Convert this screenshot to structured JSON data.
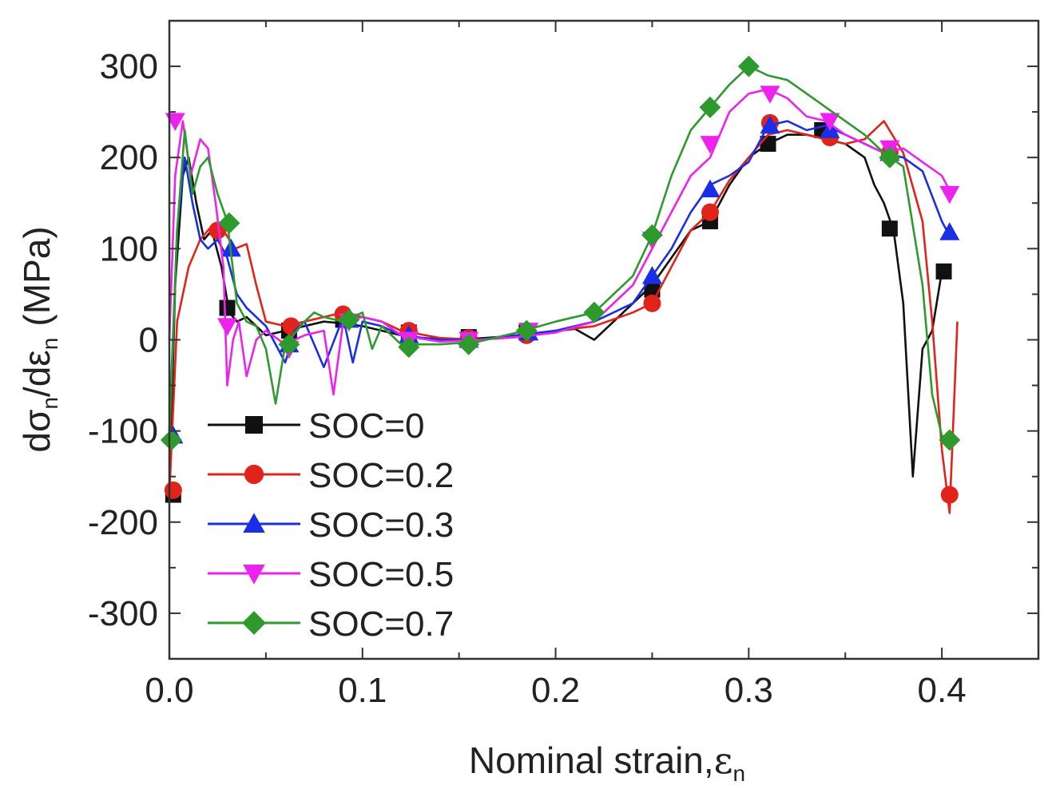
{
  "colors": {
    "axis": "#333333"
  },
  "chart_data": {
    "type": "line",
    "xlabel": "Nominal strain,",
    "xlabel_symbol": "ε",
    "xlabel_sub": "n",
    "ylabel_d1": "dσ",
    "ylabel_sub1": "n",
    "ylabel_slash": "/dε",
    "ylabel_sub2": "n",
    "ylabel_unit": "(MPa)",
    "xlim": [
      0.0,
      0.45
    ],
    "ylim": [
      -350,
      350
    ],
    "xticks": [
      0.0,
      0.1,
      0.2,
      0.3,
      0.4
    ],
    "xtick_labels": [
      "0.0",
      "0.1",
      "0.2",
      "0.3",
      "0.4"
    ],
    "yticks": [
      -300,
      -200,
      -100,
      0,
      100,
      200,
      300
    ],
    "ytick_labels": [
      "-300",
      "-200",
      "-100",
      "0",
      "100",
      "200",
      "300"
    ],
    "grid": false,
    "legend_position": "lower-left",
    "series": [
      {
        "name": "SOC=0",
        "color": "#111111",
        "marker": "square",
        "points": [
          [
            0.0,
            -170
          ],
          [
            0.003,
            60
          ],
          [
            0.007,
            180
          ],
          [
            0.01,
            200
          ],
          [
            0.014,
            150
          ],
          [
            0.018,
            110
          ],
          [
            0.022,
            120
          ],
          [
            0.027,
            80
          ],
          [
            0.031,
            30
          ],
          [
            0.035,
            20
          ],
          [
            0.04,
            25
          ],
          [
            0.05,
            5
          ],
          [
            0.06,
            10
          ],
          [
            0.07,
            15
          ],
          [
            0.08,
            20
          ],
          [
            0.09,
            18
          ],
          [
            0.1,
            15
          ],
          [
            0.11,
            10
          ],
          [
            0.12,
            5
          ],
          [
            0.13,
            2
          ],
          [
            0.15,
            0
          ],
          [
            0.17,
            3
          ],
          [
            0.19,
            7
          ],
          [
            0.21,
            12
          ],
          [
            0.22,
            0
          ],
          [
            0.23,
            20
          ],
          [
            0.24,
            40
          ],
          [
            0.25,
            60
          ],
          [
            0.26,
            90
          ],
          [
            0.27,
            120
          ],
          [
            0.28,
            130
          ],
          [
            0.29,
            170
          ],
          [
            0.3,
            200
          ],
          [
            0.31,
            215
          ],
          [
            0.32,
            225
          ],
          [
            0.33,
            225
          ],
          [
            0.34,
            220
          ],
          [
            0.35,
            215
          ],
          [
            0.36,
            200
          ],
          [
            0.365,
            170
          ],
          [
            0.37,
            150
          ],
          [
            0.375,
            120
          ],
          [
            0.38,
            40
          ],
          [
            0.385,
            -150
          ],
          [
            0.39,
            -10
          ],
          [
            0.395,
            10
          ],
          [
            0.4,
            75
          ],
          [
            0.403,
            70
          ]
        ],
        "markers": [
          [
            0.002,
            -170
          ],
          [
            0.03,
            35
          ],
          [
            0.062,
            10
          ],
          [
            0.09,
            22
          ],
          [
            0.124,
            8
          ],
          [
            0.155,
            3
          ],
          [
            0.185,
            8
          ],
          [
            0.25,
            55
          ],
          [
            0.28,
            130
          ],
          [
            0.31,
            215
          ],
          [
            0.338,
            230
          ],
          [
            0.373,
            122
          ],
          [
            0.401,
            75
          ]
        ]
      },
      {
        "name": "SOC=0.2",
        "color": "#e2231a",
        "marker": "circle",
        "points": [
          [
            0.0,
            -170
          ],
          [
            0.004,
            20
          ],
          [
            0.01,
            80
          ],
          [
            0.016,
            110
          ],
          [
            0.022,
            125
          ],
          [
            0.028,
            120
          ],
          [
            0.034,
            100
          ],
          [
            0.04,
            105
          ],
          [
            0.045,
            60
          ],
          [
            0.05,
            20
          ],
          [
            0.06,
            15
          ],
          [
            0.07,
            20
          ],
          [
            0.08,
            25
          ],
          [
            0.09,
            30
          ],
          [
            0.1,
            25
          ],
          [
            0.11,
            20
          ],
          [
            0.12,
            10
          ],
          [
            0.14,
            2
          ],
          [
            0.16,
            0
          ],
          [
            0.18,
            3
          ],
          [
            0.2,
            10
          ],
          [
            0.22,
            15
          ],
          [
            0.24,
            30
          ],
          [
            0.25,
            40
          ],
          [
            0.26,
            80
          ],
          [
            0.27,
            120
          ],
          [
            0.28,
            140
          ],
          [
            0.29,
            175
          ],
          [
            0.3,
            200
          ],
          [
            0.31,
            225
          ],
          [
            0.32,
            230
          ],
          [
            0.33,
            225
          ],
          [
            0.34,
            220
          ],
          [
            0.35,
            215
          ],
          [
            0.36,
            220
          ],
          [
            0.37,
            240
          ],
          [
            0.38,
            205
          ],
          [
            0.39,
            130
          ],
          [
            0.395,
            20
          ],
          [
            0.4,
            -120
          ],
          [
            0.404,
            -190
          ],
          [
            0.408,
            20
          ]
        ],
        "markers": [
          [
            0.002,
            -165
          ],
          [
            0.025,
            120
          ],
          [
            0.063,
            15
          ],
          [
            0.09,
            28
          ],
          [
            0.124,
            10
          ],
          [
            0.155,
            2
          ],
          [
            0.185,
            5
          ],
          [
            0.25,
            40
          ],
          [
            0.28,
            140
          ],
          [
            0.311,
            238
          ],
          [
            0.342,
            222
          ],
          [
            0.373,
            205
          ],
          [
            0.404,
            -170
          ]
        ]
      },
      {
        "name": "SOC=0.3",
        "color": "#1a2ee8",
        "marker": "triangle-up",
        "points": [
          [
            0.0,
            -100
          ],
          [
            0.004,
            120
          ],
          [
            0.008,
            200
          ],
          [
            0.012,
            150
          ],
          [
            0.016,
            110
          ],
          [
            0.02,
            100
          ],
          [
            0.025,
            110
          ],
          [
            0.03,
            90
          ],
          [
            0.035,
            50
          ],
          [
            0.04,
            35
          ],
          [
            0.05,
            15
          ],
          [
            0.06,
            -25
          ],
          [
            0.065,
            10
          ],
          [
            0.07,
            20
          ],
          [
            0.08,
            -30
          ],
          [
            0.09,
            25
          ],
          [
            0.095,
            -25
          ],
          [
            0.1,
            20
          ],
          [
            0.11,
            15
          ],
          [
            0.12,
            5
          ],
          [
            0.14,
            0
          ],
          [
            0.16,
            0
          ],
          [
            0.18,
            5
          ],
          [
            0.2,
            10
          ],
          [
            0.22,
            20
          ],
          [
            0.24,
            40
          ],
          [
            0.25,
            70
          ],
          [
            0.26,
            100
          ],
          [
            0.27,
            140
          ],
          [
            0.28,
            170
          ],
          [
            0.29,
            180
          ],
          [
            0.3,
            195
          ],
          [
            0.31,
            235
          ],
          [
            0.32,
            240
          ],
          [
            0.33,
            230
          ],
          [
            0.34,
            235
          ],
          [
            0.35,
            225
          ],
          [
            0.36,
            215
          ],
          [
            0.37,
            205
          ],
          [
            0.38,
            200
          ],
          [
            0.39,
            185
          ],
          [
            0.4,
            130
          ],
          [
            0.405,
            110
          ]
        ],
        "markers": [
          [
            0.002,
            -105
          ],
          [
            0.032,
            100
          ],
          [
            0.062,
            -5
          ],
          [
            0.093,
            22
          ],
          [
            0.124,
            5
          ],
          [
            0.155,
            0
          ],
          [
            0.186,
            8
          ],
          [
            0.25,
            70
          ],
          [
            0.28,
            165
          ],
          [
            0.311,
            235
          ],
          [
            0.342,
            230
          ],
          [
            0.373,
            205
          ],
          [
            0.404,
            118
          ]
        ]
      },
      {
        "name": "SOC=0.5",
        "color": "#ee22ee",
        "marker": "triangle-down",
        "points": [
          [
            0.0,
            0
          ],
          [
            0.003,
            180
          ],
          [
            0.007,
            240
          ],
          [
            0.011,
            180
          ],
          [
            0.016,
            220
          ],
          [
            0.02,
            210
          ],
          [
            0.024,
            150
          ],
          [
            0.028,
            80
          ],
          [
            0.03,
            -50
          ],
          [
            0.033,
            0
          ],
          [
            0.036,
            20
          ],
          [
            0.04,
            -40
          ],
          [
            0.045,
            0
          ],
          [
            0.05,
            10
          ],
          [
            0.06,
            -5
          ],
          [
            0.07,
            5
          ],
          [
            0.08,
            10
          ],
          [
            0.085,
            -60
          ],
          [
            0.09,
            20
          ],
          [
            0.1,
            25
          ],
          [
            0.11,
            20
          ],
          [
            0.12,
            5
          ],
          [
            0.14,
            -2
          ],
          [
            0.16,
            0
          ],
          [
            0.18,
            3
          ],
          [
            0.2,
            8
          ],
          [
            0.22,
            20
          ],
          [
            0.24,
            60
          ],
          [
            0.25,
            100
          ],
          [
            0.26,
            140
          ],
          [
            0.27,
            180
          ],
          [
            0.28,
            200
          ],
          [
            0.29,
            250
          ],
          [
            0.3,
            270
          ],
          [
            0.31,
            275
          ],
          [
            0.32,
            265
          ],
          [
            0.33,
            245
          ],
          [
            0.34,
            240
          ],
          [
            0.35,
            225
          ],
          [
            0.36,
            215
          ],
          [
            0.37,
            205
          ],
          [
            0.38,
            210
          ],
          [
            0.39,
            195
          ],
          [
            0.4,
            180
          ],
          [
            0.405,
            160
          ]
        ],
        "markers": [
          [
            0.003,
            240
          ],
          [
            0.03,
            15
          ],
          [
            0.062,
            -10
          ],
          [
            0.093,
            20
          ],
          [
            0.124,
            0
          ],
          [
            0.155,
            0
          ],
          [
            0.186,
            10
          ],
          [
            0.25,
            110
          ],
          [
            0.28,
            215
          ],
          [
            0.311,
            270
          ],
          [
            0.342,
            240
          ],
          [
            0.373,
            210
          ],
          [
            0.404,
            160
          ]
        ]
      },
      {
        "name": "SOC=0.7",
        "color": "#2e9a2e",
        "marker": "diamond",
        "points": [
          [
            0.0,
            -110
          ],
          [
            0.004,
            120
          ],
          [
            0.008,
            230
          ],
          [
            0.012,
            160
          ],
          [
            0.016,
            190
          ],
          [
            0.02,
            200
          ],
          [
            0.025,
            160
          ],
          [
            0.03,
            130
          ],
          [
            0.035,
            40
          ],
          [
            0.04,
            20
          ],
          [
            0.045,
            15
          ],
          [
            0.05,
            -10
          ],
          [
            0.055,
            -70
          ],
          [
            0.06,
            -5
          ],
          [
            0.07,
            20
          ],
          [
            0.075,
            30
          ],
          [
            0.08,
            25
          ],
          [
            0.09,
            20
          ],
          [
            0.1,
            30
          ],
          [
            0.105,
            -10
          ],
          [
            0.11,
            15
          ],
          [
            0.12,
            -5
          ],
          [
            0.14,
            -5
          ],
          [
            0.16,
            -2
          ],
          [
            0.18,
            8
          ],
          [
            0.2,
            20
          ],
          [
            0.22,
            30
          ],
          [
            0.24,
            70
          ],
          [
            0.25,
            115
          ],
          [
            0.26,
            180
          ],
          [
            0.27,
            230
          ],
          [
            0.28,
            255
          ],
          [
            0.29,
            280
          ],
          [
            0.3,
            300
          ],
          [
            0.31,
            290
          ],
          [
            0.32,
            285
          ],
          [
            0.33,
            270
          ],
          [
            0.34,
            255
          ],
          [
            0.35,
            240
          ],
          [
            0.36,
            225
          ],
          [
            0.37,
            205
          ],
          [
            0.38,
            190
          ],
          [
            0.39,
            60
          ],
          [
            0.395,
            -60
          ],
          [
            0.4,
            -105
          ],
          [
            0.404,
            -110
          ]
        ],
        "markers": [
          [
            0.001,
            -110
          ],
          [
            0.031,
            128
          ],
          [
            0.062,
            -5
          ],
          [
            0.093,
            22
          ],
          [
            0.124,
            -8
          ],
          [
            0.155,
            -5
          ],
          [
            0.185,
            10
          ],
          [
            0.22,
            30
          ],
          [
            0.25,
            115
          ],
          [
            0.28,
            255
          ],
          [
            0.3,
            300
          ],
          [
            0.373,
            200
          ],
          [
            0.404,
            -110
          ]
        ]
      }
    ]
  }
}
